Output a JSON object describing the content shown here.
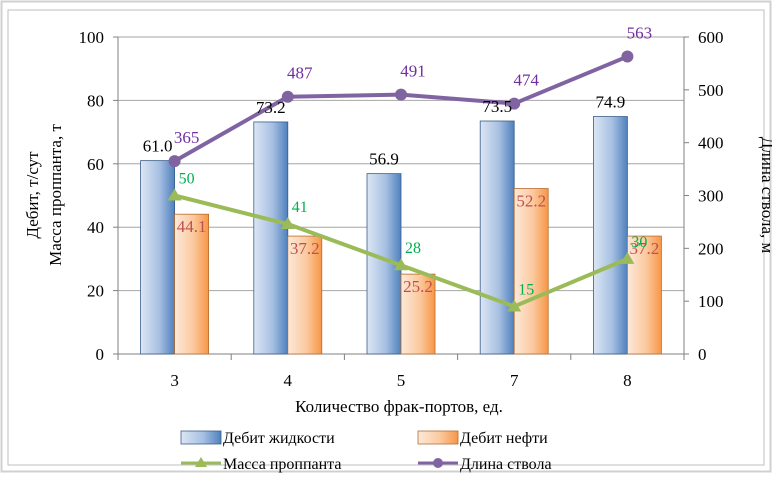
{
  "chart_data": {
    "type": "bar",
    "categories": [
      "3",
      "4",
      "5",
      "7",
      "8"
    ],
    "xlabel": "Количество фрак-портов, ед.",
    "ylabel_left_line1": "Дебит, т/сут",
    "ylabel_left_line2": "Масса проппанта, т",
    "ylabel_right": "Длина ствола, м",
    "ylim_left": [
      0,
      100
    ],
    "yticks_left": [
      "0",
      "20",
      "40",
      "60",
      "80",
      "100"
    ],
    "ylim_right": [
      0,
      600
    ],
    "yticks_right": [
      "0",
      "100",
      "200",
      "300",
      "400",
      "500",
      "600"
    ],
    "grid": true,
    "legend_position": "bottom",
    "series": [
      {
        "name": "Дебит жидкости",
        "kind": "bar",
        "axis": "left",
        "values": [
          61.0,
          73.2,
          56.9,
          73.5,
          74.9
        ],
        "labels": [
          "61.0",
          "73.2",
          "56.9",
          "73.5",
          "74.9"
        ],
        "color": "#4f81bd",
        "label_color": "#000000"
      },
      {
        "name": "Дебит нефти",
        "kind": "bar",
        "axis": "left",
        "values": [
          44.1,
          37.2,
          25.2,
          52.2,
          37.2
        ],
        "labels": [
          "44.1",
          "37.2",
          "25.2",
          "52.2",
          "37.2"
        ],
        "color": "#f79646",
        "label_color": "#c0504d"
      },
      {
        "name": "Масса проппанта",
        "kind": "line",
        "axis": "left",
        "marker": "triangle",
        "values": [
          50,
          41,
          28,
          15,
          30
        ],
        "labels": [
          "50",
          "41",
          "28",
          "15",
          "30"
        ],
        "color": "#9bbb59",
        "label_color": "#00b050"
      },
      {
        "name": "Длина ствола",
        "kind": "line",
        "axis": "right",
        "marker": "circle",
        "values": [
          365,
          487,
          491,
          474,
          563
        ],
        "labels": [
          "365",
          "487",
          "491",
          "474",
          "563"
        ],
        "color": "#8064a2",
        "label_color": "#7030a0"
      }
    ]
  }
}
